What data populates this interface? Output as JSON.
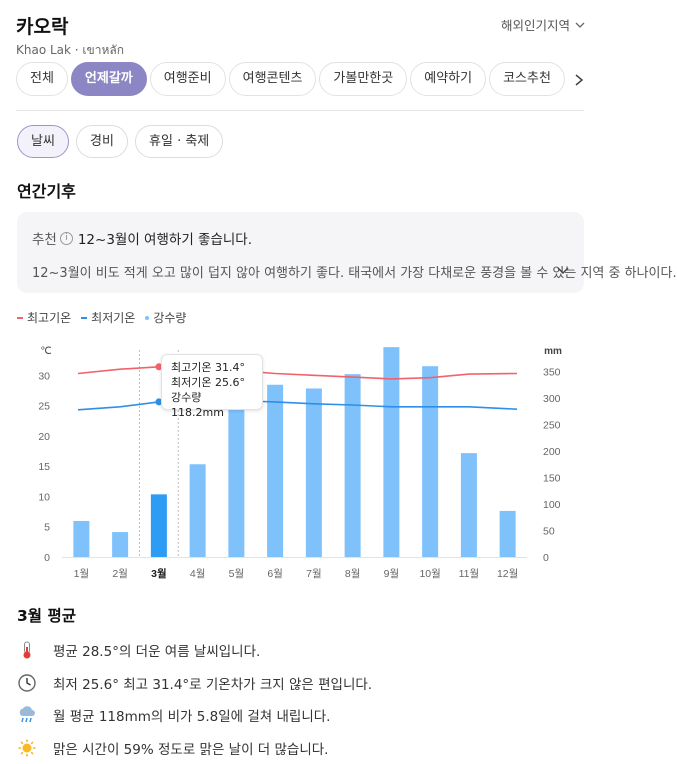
{
  "header": {
    "title": "카오락",
    "subtitle": "Khao Lak · เขาหลัก",
    "region_label": "해외인기지역"
  },
  "tabs": [
    {
      "label": "전체",
      "active": false
    },
    {
      "label": "언제갈까",
      "active": true
    },
    {
      "label": "여행준비",
      "active": false
    },
    {
      "label": "여행콘텐츠",
      "active": false
    },
    {
      "label": "가볼만한곳",
      "active": false
    },
    {
      "label": "예약하기",
      "active": false
    },
    {
      "label": "코스추천",
      "active": false
    }
  ],
  "subtabs": [
    {
      "label": "날씨",
      "active": true
    },
    {
      "label": "경비",
      "active": false
    },
    {
      "label": "휴일 · 축제",
      "active": false
    }
  ],
  "section_title": "연간기후",
  "recommendation": {
    "label": "추천",
    "info_icon": "info-icon",
    "text": "12~3월이 여행하기 좋습니다.",
    "detail": "12~3월이 비도 적게 오고 많이 덥지 않아 여행하기 좋다. 태국에서 가장 다채로운 풍경을 볼 수 있는 지역 중 하나이다."
  },
  "legend": {
    "max_label": "최고기온",
    "min_label": "최저기온",
    "rain_label": "강수량"
  },
  "colors": {
    "accent": "#8c86c4",
    "max_temp": "#f2626b",
    "min_temp": "#2f8fe8",
    "rain": "#7fc1fb",
    "rain_selected": "#2d9cf4"
  },
  "tooltip": {
    "max": "최고기온 31.4°",
    "min": "최저기온 25.6°",
    "rain": "강수량 118.2mm"
  },
  "chart_data": {
    "type": "bar",
    "categories": [
      "1월",
      "2월",
      "3월",
      "4월",
      "5월",
      "6월",
      "7월",
      "8월",
      "9월",
      "10월",
      "11월",
      "12월"
    ],
    "selected_index": 2,
    "left_unit": "℃",
    "right_unit": "mm",
    "y_left": {
      "range": [
        0,
        35
      ],
      "ticks": [
        0,
        5,
        10,
        15,
        20,
        25,
        30
      ]
    },
    "y_right": {
      "range": [
        0,
        400
      ],
      "ticks": [
        0,
        50,
        100,
        150,
        200,
        250,
        300,
        350
      ]
    },
    "grid": false,
    "legend_position": "top-left",
    "series": [
      {
        "name": "강수량",
        "kind": "bar",
        "axis": "right",
        "values": [
          68,
          47,
          118.2,
          175,
          300,
          325,
          318,
          345,
          396,
          360,
          196,
          87
        ]
      },
      {
        "name": "최고기온",
        "kind": "line",
        "axis": "left",
        "values": [
          30.3,
          31.0,
          31.4,
          31.4,
          30.8,
          30.3,
          30.0,
          29.7,
          29.4,
          29.6,
          30.2,
          30.3
        ]
      },
      {
        "name": "최저기온",
        "kind": "line",
        "axis": "left",
        "values": [
          24.3,
          24.8,
          25.6,
          26.2,
          25.8,
          25.6,
          25.3,
          25.1,
          24.8,
          24.8,
          24.8,
          24.4
        ]
      }
    ]
  },
  "monthly_average": {
    "title": "3월 평균",
    "facts": [
      {
        "icon": "thermometer-icon",
        "text": "평균 28.5°의 더운 여름 날씨입니다."
      },
      {
        "icon": "clock-icon",
        "text": "최저 25.6° 최고 31.4°로 기온차가 크지 않은 편입니다."
      },
      {
        "icon": "rain-cloud-icon",
        "text": "월 평균 118mm의 비가 5.8일에 걸쳐 내립니다."
      },
      {
        "icon": "sun-icon",
        "text": "맑은 시간이 59% 정도로 맑은 날이 더 많습니다."
      }
    ]
  }
}
